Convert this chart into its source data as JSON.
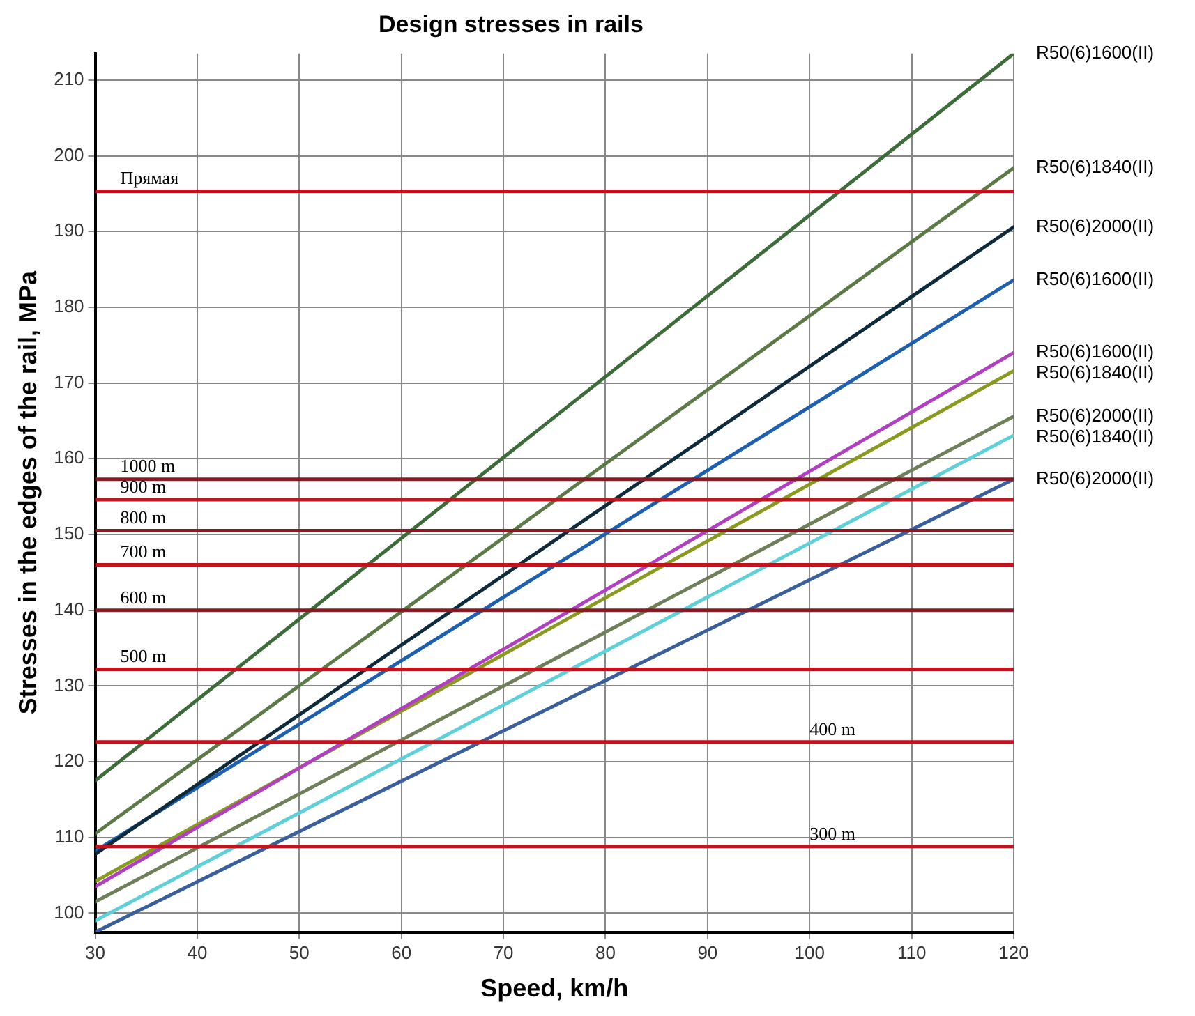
{
  "chart_data": {
    "type": "line",
    "title": "Design stresses in rails",
    "xlabel": "Speed, km/h",
    "ylabel": "Stresses in the edges of the rail, MPa",
    "x": [
      30,
      120
    ],
    "series": [
      {
        "name": "R50(6)1600(II)",
        "color": "#3e6b3a",
        "values": [
          117.5,
          213.5
        ]
      },
      {
        "name": "R50(6)1840(II)",
        "color": "#5c7a48",
        "values": [
          110.5,
          198.4
        ]
      },
      {
        "name": "R50(6)2000(II)",
        "color": "#0f2a3a",
        "values": [
          107.8,
          190.6
        ]
      },
      {
        "name": "R50(6)1600(II)",
        "color": "#1f5fb0",
        "values": [
          108.2,
          183.6
        ]
      },
      {
        "name": "R50(6)1600(II)",
        "color": "#b040c0",
        "values": [
          103.5,
          174
        ]
      },
      {
        "name": "R50(6)1840(II)",
        "color": "#8a9a20",
        "values": [
          104.2,
          171.6
        ]
      },
      {
        "name": "R50(6)2000(II)",
        "color": "#6f7f5a",
        "values": [
          101.5,
          165.6
        ]
      },
      {
        "name": "R50(6)1840(II)",
        "color": "#5fd0d8",
        "values": [
          99,
          163.1
        ]
      },
      {
        "name": "R50(6)2000(II)",
        "color": "#3a5f9a",
        "values": [
          97.5,
          157.3
        ]
      }
    ],
    "ref_lines": [
      {
        "axis": "y",
        "value": 195.3,
        "label": "Прямая",
        "color": "#c0141e"
      },
      {
        "axis": "y",
        "value": 157.3,
        "label": "1000 m",
        "color": "#8c1a24"
      },
      {
        "axis": "y",
        "value": 154.6,
        "label": "900 m",
        "color": "#c0141e"
      },
      {
        "axis": "y",
        "value": 150.5,
        "label": "800 m",
        "color": "#8c1a24"
      },
      {
        "axis": "y",
        "value": 146,
        "label": "700 m",
        "color": "#c0141e"
      },
      {
        "axis": "y",
        "value": 140,
        "label": "600 m",
        "color": "#8c1a24"
      },
      {
        "axis": "y",
        "value": 132.2,
        "label": "500 m",
        "color": "#c0141e"
      },
      {
        "axis": "y",
        "value": 122.6,
        "label": "400 m",
        "color": "#c0141e"
      },
      {
        "axis": "y",
        "value": 108.8,
        "label": "300 m",
        "color": "#c0141e"
      }
    ],
    "xlim": [
      30,
      120
    ],
    "xticks": [
      30,
      40,
      50,
      60,
      70,
      80,
      90,
      100,
      110,
      120
    ],
    "ylim": [
      97.5,
      213.5
    ],
    "yticks": [
      100,
      110,
      120,
      130,
      140,
      150,
      160,
      170,
      180,
      190,
      200,
      210
    ],
    "grid": true,
    "legend": false,
    "marker": "none",
    "line_style": "solid"
  }
}
